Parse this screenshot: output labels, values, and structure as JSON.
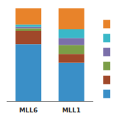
{
  "chart_data": {
    "type": "bar",
    "stacked": true,
    "categories": [
      "MLL6",
      "MLL1"
    ],
    "series": [
      {
        "color": "#3a8fc7",
        "values": [
          0.615,
          0.415
        ]
      },
      {
        "color": "#a0482a",
        "values": [
          0.145,
          0.095
        ]
      },
      {
        "color": "#7b9e47",
        "values": [
          0.025,
          0.095
        ]
      },
      {
        "color": "#7b6faa",
        "values": [
          0.015,
          0.075
        ]
      },
      {
        "color": "#3ab8c8",
        "values": [
          0.025,
          0.095
        ]
      },
      {
        "color": "#e8832a",
        "values": [
          0.175,
          0.225
        ]
      }
    ],
    "ylim": [
      0,
      1.0
    ],
    "tick_labels": "x",
    "grid": false,
    "legend": "right"
  }
}
